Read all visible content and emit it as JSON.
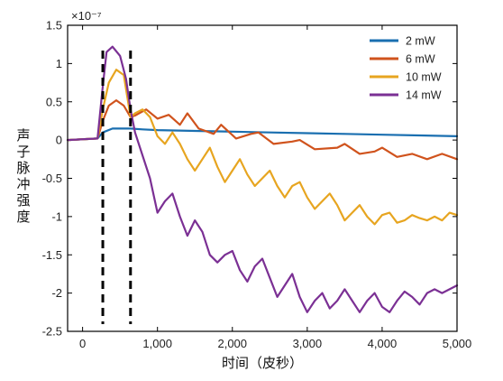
{
  "chart_data": {
    "type": "line",
    "xlabel": "时间（皮秒）",
    "ylabel": "声子脉冲强度",
    "axis_multiplier": "×10⁻⁷",
    "xlim": [
      -200,
      5000
    ],
    "ylim": [
      -2.5,
      1.5
    ],
    "xticks": [
      0,
      1000,
      2000,
      3000,
      4000,
      5000
    ],
    "xtick_labels": [
      "0",
      "1,000",
      "2,000",
      "3,000",
      "4,000",
      "5,000"
    ],
    "yticks": [
      1.5,
      1,
      0.5,
      0,
      -0.5,
      -1,
      -1.5,
      -2,
      -2.5
    ],
    "ytick_labels": [
      "1.5",
      "1",
      "0.5",
      "0",
      "-0.5",
      "-1",
      "-1.5",
      "-2",
      "-2.5"
    ],
    "grid": false,
    "legend_position": "top-right",
    "vlines": [
      270,
      640
    ],
    "series": [
      {
        "name": "2 mW",
        "color": "#1a6fb0",
        "x": [
          -200,
          200,
          270,
          400,
          640,
          800,
          1000,
          1500,
          2000,
          2500,
          3000,
          3500,
          4000,
          4500,
          5000
        ],
        "y": [
          0.0,
          0.02,
          0.1,
          0.15,
          0.15,
          0.14,
          0.13,
          0.12,
          0.11,
          0.1,
          0.09,
          0.08,
          0.07,
          0.06,
          0.05
        ]
      },
      {
        "name": "6 mW",
        "color": "#d0531d",
        "x": [
          -200,
          200,
          270,
          350,
          450,
          550,
          640,
          700,
          850,
          1000,
          1150,
          1300,
          1400,
          1550,
          1750,
          1850,
          2050,
          2250,
          2350,
          2550,
          2800,
          2900,
          3100,
          3400,
          3500,
          3700,
          3900,
          4000,
          4200,
          4400,
          4600,
          4800,
          5000
        ],
        "y": [
          0.0,
          0.02,
          0.25,
          0.45,
          0.52,
          0.45,
          0.3,
          0.32,
          0.4,
          0.28,
          0.33,
          0.2,
          0.35,
          0.15,
          0.08,
          0.2,
          0.02,
          0.08,
          0.1,
          -0.05,
          -0.02,
          0.0,
          -0.12,
          -0.1,
          -0.05,
          -0.18,
          -0.15,
          -0.1,
          -0.22,
          -0.18,
          -0.25,
          -0.18,
          -0.25
        ]
      },
      {
        "name": "10 mW",
        "color": "#e7a520",
        "x": [
          -200,
          200,
          270,
          350,
          450,
          550,
          640,
          700,
          800,
          900,
          1000,
          1100,
          1200,
          1300,
          1400,
          1500,
          1600,
          1700,
          1800,
          1900,
          2000,
          2100,
          2200,
          2300,
          2400,
          2500,
          2600,
          2700,
          2800,
          2900,
          3000,
          3100,
          3200,
          3300,
          3400,
          3500,
          3600,
          3700,
          3800,
          3900,
          4000,
          4100,
          4200,
          4300,
          4400,
          4500,
          4600,
          4700,
          4800,
          4900,
          5000
        ],
        "y": [
          0.0,
          0.02,
          0.4,
          0.75,
          0.92,
          0.85,
          0.3,
          0.35,
          0.4,
          0.3,
          0.05,
          -0.05,
          0.1,
          -0.05,
          -0.25,
          -0.4,
          -0.25,
          -0.1,
          -0.35,
          -0.55,
          -0.4,
          -0.25,
          -0.45,
          -0.6,
          -0.5,
          -0.4,
          -0.6,
          -0.75,
          -0.6,
          -0.55,
          -0.75,
          -0.9,
          -0.8,
          -0.7,
          -0.85,
          -1.05,
          -0.95,
          -0.85,
          -1.0,
          -1.1,
          -0.98,
          -0.95,
          -1.08,
          -1.05,
          -0.98,
          -1.02,
          -1.05,
          -1.0,
          -1.05,
          -0.95,
          -0.98
        ]
      },
      {
        "name": "14 mW",
        "color": "#7b3094",
        "x": [
          -200,
          200,
          270,
          320,
          400,
          500,
          580,
          640,
          700,
          800,
          900,
          1000,
          1100,
          1200,
          1300,
          1400,
          1500,
          1600,
          1700,
          1800,
          1900,
          2000,
          2100,
          2200,
          2300,
          2400,
          2500,
          2600,
          2700,
          2800,
          2900,
          3000,
          3100,
          3200,
          3300,
          3400,
          3500,
          3600,
          3700,
          3800,
          3900,
          4000,
          4100,
          4200,
          4300,
          4400,
          4500,
          4600,
          4700,
          4800,
          4900,
          5000
        ],
        "y": [
          0.0,
          0.02,
          0.7,
          1.15,
          1.22,
          1.1,
          0.8,
          0.4,
          0.1,
          -0.2,
          -0.5,
          -0.95,
          -0.8,
          -0.7,
          -1.0,
          -1.25,
          -1.05,
          -1.2,
          -1.5,
          -1.6,
          -1.5,
          -1.45,
          -1.7,
          -1.85,
          -1.65,
          -1.55,
          -1.8,
          -2.05,
          -1.9,
          -1.75,
          -2.05,
          -2.25,
          -2.1,
          -2.0,
          -2.2,
          -2.1,
          -1.95,
          -2.1,
          -2.25,
          -2.1,
          -2.0,
          -2.18,
          -2.25,
          -2.1,
          -1.98,
          -2.05,
          -2.15,
          -2.0,
          -1.95,
          -2.0,
          -1.95,
          -1.9
        ]
      }
    ]
  }
}
